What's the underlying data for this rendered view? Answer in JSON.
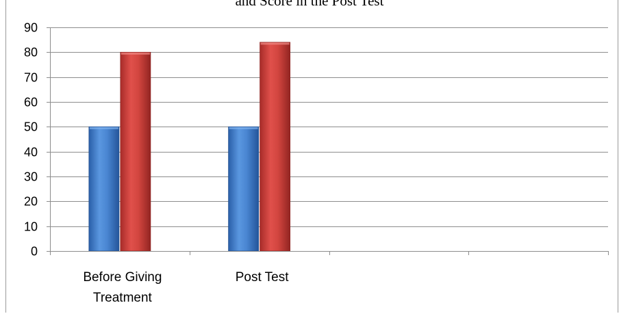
{
  "chart_data": {
    "type": "bar",
    "title": "and Score in the Post Test",
    "categories": [
      "Before Giving Treatment",
      "Post Test",
      "",
      ""
    ],
    "category_lines": [
      [
        "Before Giving",
        "Treatment"
      ],
      [
        "Post Test"
      ],
      [
        ""
      ],
      [
        ""
      ]
    ],
    "series": [
      {
        "values": [
          50,
          50,
          null,
          null
        ],
        "color": "#3a78c9"
      },
      {
        "values": [
          80,
          84,
          null,
          null
        ],
        "color": "#c23a36"
      }
    ],
    "ylim": [
      0,
      90
    ],
    "yticks": [
      0,
      10,
      20,
      30,
      40,
      50,
      60,
      70,
      80,
      90
    ],
    "grid": true,
    "xlabel": "",
    "ylabel": ""
  }
}
